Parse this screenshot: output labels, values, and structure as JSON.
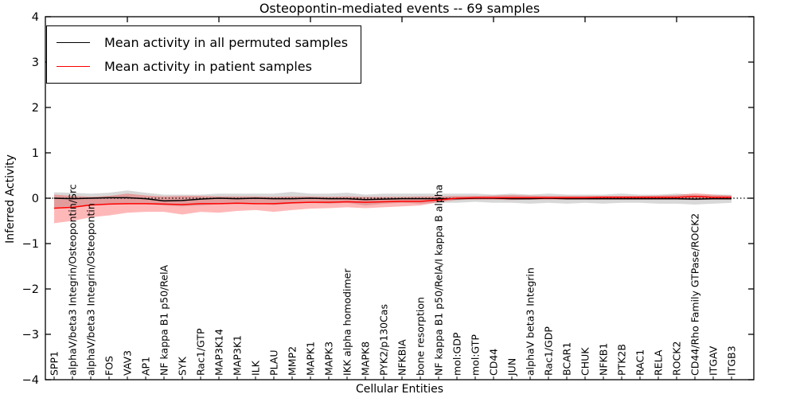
{
  "title": "Osteopontin-mediated events -- 69 samples",
  "chart_data": {
    "type": "line",
    "title": "Osteopontin-mediated events -- 69 samples",
    "xlabel": "Cellular Entities",
    "ylabel": "Inferred Activity",
    "ylim": [
      -4,
      4
    ],
    "yticks": [
      -4,
      -3,
      -2,
      -1,
      0,
      1,
      2,
      3,
      4
    ],
    "grid": false,
    "legend_position": "upper left",
    "zero_line": {
      "style": "dotted",
      "color": "#000000",
      "y": 0
    },
    "colors": {
      "permuted_line": "#000000",
      "permuted_band": "#aaaaaa",
      "patient_line": "#ff0000",
      "patient_band": "#ff0000",
      "axes": "#000000",
      "background": "#ffffff"
    },
    "categories": [
      "SPP1",
      "alphaV/beta3 Integrin/Osteopontin/Src",
      "alphaV/beta3 Integrin/Osteopontin",
      "FOS",
      "VAV3",
      "AP1",
      "NF kappa B1 p50/RelA",
      "SYK",
      "Rac1/GTP",
      "MAP3K14",
      "MAP3K1",
      "ILK",
      "PLAU",
      "MMP2",
      "MAPK1",
      "MAPK3",
      "IKK alpha homodimer",
      "MAPK8",
      "PYK2/p130Cas",
      "NFKBIA",
      "bone resorption",
      "NF kappa B1 p50/RelA/I kappa B alpha",
      "mol:GDP",
      "mol:GTP",
      "CD44",
      "JUN",
      "alphaV beta3 Integrin",
      "Rac1/GDP",
      "BCAR1",
      "CHUK",
      "NFKB1",
      "PTK2B",
      "RAC1",
      "RELA",
      "ROCK2",
      "CD44/Rho Family GTPase/ROCK2",
      "ITGAV",
      "ITGB3"
    ],
    "series": [
      {
        "name": "Mean activity in all permuted samples",
        "color": "#000000",
        "band_color": "#999999",
        "band_opacity": 0.38,
        "values": [
          0.0,
          -0.01,
          0.0,
          0.01,
          0.01,
          -0.01,
          -0.06,
          -0.05,
          -0.02,
          0.0,
          -0.01,
          0.0,
          -0.01,
          -0.01,
          0.0,
          -0.01,
          -0.01,
          -0.03,
          -0.02,
          -0.01,
          -0.01,
          -0.01,
          -0.01,
          0.0,
          0.0,
          -0.01,
          -0.01,
          0.0,
          -0.01,
          -0.01,
          -0.01,
          -0.01,
          -0.01,
          -0.01,
          -0.01,
          -0.02,
          -0.01,
          -0.01
        ],
        "band_lower": [
          -0.2,
          -0.18,
          -0.16,
          -0.13,
          -0.12,
          -0.13,
          -0.16,
          -0.18,
          -0.16,
          -0.13,
          -0.12,
          -0.11,
          -0.15,
          -0.12,
          -0.1,
          -0.12,
          -0.1,
          -0.16,
          -0.12,
          -0.1,
          -0.12,
          -0.1,
          -0.1,
          -0.08,
          -0.1,
          -0.1,
          -0.12,
          -0.1,
          -0.12,
          -0.1,
          -0.12,
          -0.1,
          -0.1,
          -0.12,
          -0.12,
          -0.14,
          -0.12,
          -0.1
        ],
        "band_upper": [
          0.13,
          0.12,
          0.1,
          0.12,
          0.17,
          0.12,
          0.08,
          0.08,
          0.08,
          0.1,
          0.1,
          0.1,
          0.1,
          0.14,
          0.1,
          0.1,
          0.12,
          0.08,
          0.1,
          0.1,
          0.1,
          0.1,
          0.1,
          0.1,
          0.08,
          0.1,
          0.08,
          0.1,
          0.08,
          0.08,
          0.08,
          0.1,
          0.08,
          0.08,
          0.1,
          0.08,
          0.08,
          0.08
        ]
      },
      {
        "name": "Mean activity in patient samples",
        "color": "#ff0000",
        "band_color": "#ff0000",
        "band_opacity": 0.28,
        "values": [
          -0.22,
          -0.2,
          -0.15,
          -0.13,
          -0.12,
          -0.12,
          -0.13,
          -0.14,
          -0.12,
          -0.12,
          -0.11,
          -0.12,
          -0.12,
          -0.1,
          -0.09,
          -0.09,
          -0.08,
          -0.09,
          -0.08,
          -0.07,
          -0.07,
          -0.04,
          0.0,
          0.01,
          0.01,
          0.01,
          0.01,
          0.01,
          0.01,
          0.01,
          0.02,
          0.02,
          0.02,
          0.02,
          0.02,
          0.04,
          0.02,
          0.02
        ],
        "band_lower": [
          -0.55,
          -0.5,
          -0.42,
          -0.38,
          -0.32,
          -0.3,
          -0.3,
          -0.36,
          -0.3,
          -0.32,
          -0.28,
          -0.26,
          -0.3,
          -0.26,
          -0.23,
          -0.22,
          -0.2,
          -0.22,
          -0.2,
          -0.18,
          -0.16,
          -0.09,
          -0.04,
          -0.03,
          -0.03,
          -0.04,
          -0.03,
          -0.03,
          -0.03,
          -0.03,
          -0.03,
          -0.03,
          -0.03,
          -0.03,
          -0.03,
          -0.04,
          -0.03,
          -0.03
        ],
        "band_upper": [
          0.08,
          0.05,
          0.03,
          0.05,
          0.1,
          0.06,
          0.04,
          0.05,
          0.05,
          0.04,
          0.04,
          0.04,
          0.03,
          0.04,
          0.04,
          0.03,
          0.04,
          0.03,
          0.03,
          0.03,
          0.04,
          0.04,
          0.05,
          0.05,
          0.06,
          0.07,
          0.06,
          0.05,
          0.05,
          0.05,
          0.05,
          0.05,
          0.05,
          0.06,
          0.07,
          0.11,
          0.08,
          0.06
        ]
      }
    ]
  },
  "legend": {
    "items": [
      {
        "label": "Mean activity in all permuted samples",
        "color": "#000000"
      },
      {
        "label": "Mean activity in patient samples",
        "color": "#ff0000"
      }
    ]
  }
}
